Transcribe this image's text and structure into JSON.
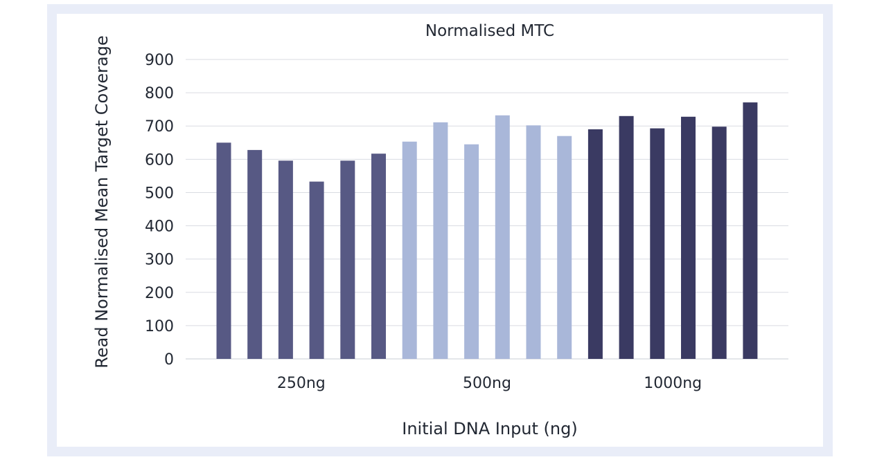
{
  "chart_data": {
    "type": "bar",
    "title": "Normalised MTC",
    "xlabel": "Initial DNA Input (ng)",
    "ylabel": "Read Normalised Mean Target Coverage",
    "ylim": [
      0,
      900
    ],
    "yticks": [
      0,
      100,
      200,
      300,
      400,
      500,
      600,
      700,
      800,
      900
    ],
    "grid": true,
    "groups": [
      {
        "label": "250ng",
        "color": "#575984",
        "values": [
          650,
          628,
          596,
          533,
          596,
          617
        ]
      },
      {
        "label": "500ng",
        "color": "#a9b7d9",
        "values": [
          653,
          711,
          645,
          732,
          702,
          670
        ]
      },
      {
        "label": "1000ng",
        "color": "#3a3a62",
        "values": [
          690,
          730,
          693,
          728,
          698,
          771
        ]
      }
    ]
  }
}
